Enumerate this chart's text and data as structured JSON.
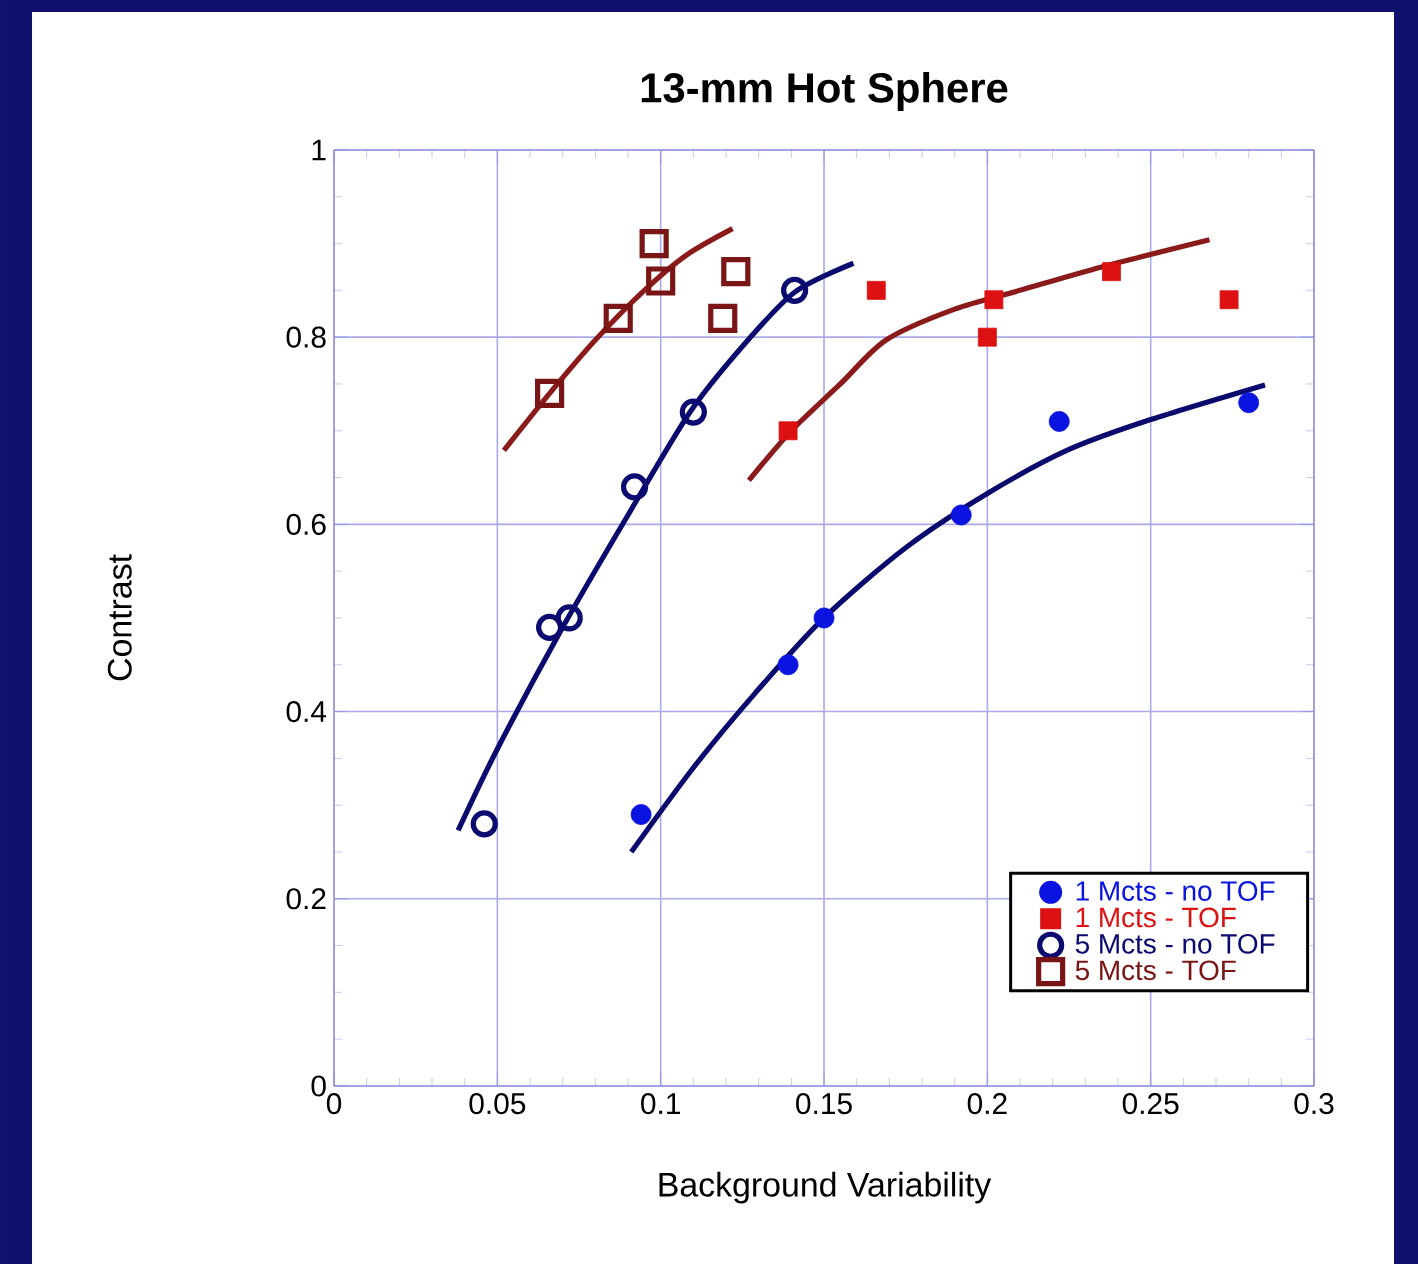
{
  "chart_data": {
    "type": "scatter",
    "title": "13-mm Hot Sphere",
    "xlabel": "Background Variability",
    "ylabel": "Contrast",
    "xlim": [
      0,
      0.3
    ],
    "ylim": [
      0,
      1
    ],
    "xticks": [
      0,
      0.05,
      0.1,
      0.15,
      0.2,
      0.25,
      0.3
    ],
    "yticks": [
      0,
      0.2,
      0.4,
      0.6,
      0.8,
      1
    ],
    "grid": true,
    "legend": "bottom right",
    "series": [
      {
        "name": "1 Mcts - no TOF",
        "marker": "circle",
        "color": "#0a14e0",
        "x": [
          0.094,
          0.139,
          0.15,
          0.192,
          0.222,
          0.28
        ],
        "values": [
          0.29,
          0.45,
          0.5,
          0.61,
          0.71,
          0.73
        ]
      },
      {
        "name": "1 Mcts - TOF",
        "marker": "square",
        "color": "#dd1111",
        "x": [
          0.139,
          0.166,
          0.2,
          0.202,
          0.238,
          0.274
        ],
        "values": [
          0.7,
          0.85,
          0.8,
          0.84,
          0.87,
          0.84
        ]
      },
      {
        "name": "5 Mcts - no TOF",
        "marker": "circle-open",
        "color": "#0a0a70",
        "x": [
          0.046,
          0.066,
          0.072,
          0.092,
          0.11,
          0.141
        ],
        "values": [
          0.28,
          0.49,
          0.5,
          0.64,
          0.72,
          0.85
        ]
      },
      {
        "name": "5 Mcts - TOF",
        "marker": "square-open",
        "color": "#7a1515",
        "x": [
          0.066,
          0.087,
          0.098,
          0.1,
          0.119,
          0.123
        ],
        "values": [
          0.74,
          0.82,
          0.9,
          0.86,
          0.82,
          0.87
        ]
      },
      {
        "type": "line",
        "color": "#0a0a6e",
        "x": [
          0.091,
          0.11,
          0.129,
          0.15,
          0.175,
          0.2,
          0.225,
          0.25,
          0.285
        ],
        "values": [
          0.25,
          0.34,
          0.42,
          0.5,
          0.575,
          0.633,
          0.68,
          0.712,
          0.749
        ]
      },
      {
        "type": "line",
        "color": "#8b1a1a",
        "x": [
          0.127,
          0.14,
          0.155,
          0.169,
          0.19,
          0.21,
          0.235,
          0.268
        ],
        "values": [
          0.647,
          0.7,
          0.75,
          0.797,
          0.83,
          0.85,
          0.875,
          0.904
        ]
      },
      {
        "type": "line",
        "color": "#0a0a6e",
        "x": [
          0.038,
          0.05,
          0.07,
          0.09,
          0.109,
          0.125,
          0.141,
          0.159
        ],
        "values": [
          0.273,
          0.36,
          0.49,
          0.61,
          0.72,
          0.79,
          0.848,
          0.879
        ]
      },
      {
        "type": "line",
        "color": "#8b1a1a",
        "x": [
          0.052,
          0.066,
          0.08,
          0.095,
          0.108,
          0.122
        ],
        "values": [
          0.679,
          0.74,
          0.797,
          0.85,
          0.888,
          0.916
        ]
      }
    ]
  }
}
